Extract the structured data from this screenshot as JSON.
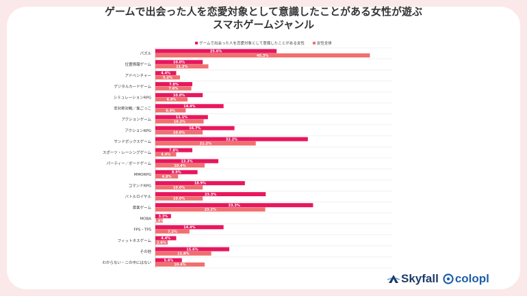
{
  "title_line1": "ゲームで出会った人を恋愛対象として意識したことがある女性が遊ぶ",
  "title_line2": "スマホゲームジャンル",
  "logos": {
    "skyfall": "Skyfall",
    "colopl": "colopl"
  },
  "colors": {
    "series1": "#e8175d",
    "series2": "#f07070",
    "background": "#fbe9ea",
    "grid": "#e6e6e6"
  },
  "chart_data": {
    "type": "bar",
    "orientation": "horizontal",
    "categories": [
      "パズル",
      "位置情報ゲーム",
      "アドベンチャー",
      "デジタルカードゲーム",
      "シミュレーションRPG",
      "非対称対戦／鬼ごっこ",
      "アクションゲーム",
      "アクションRPG",
      "サンドボックスゲーム",
      "スポーツ・レーシングゲーム",
      "パーティー／ボードゲーム",
      "MMORPG",
      "コマンドRPG",
      "バトルロイヤル",
      "音楽ゲーム",
      "MOBA",
      "FPS・TPS",
      "フィットネスゲーム",
      "その他",
      "わからない・この中にはない"
    ],
    "series": [
      {
        "name": "ゲームで出会った人を恋愛対象として意識したことがある女性",
        "values": [
          25.6,
          10.0,
          4.4,
          7.8,
          10.0,
          14.4,
          11.1,
          16.7,
          32.2,
          7.8,
          13.3,
          8.9,
          18.9,
          23.3,
          33.3,
          3.3,
          14.4,
          4.4,
          15.6,
          5.6
        ],
        "labels": [
          "25.6%",
          "10.0%",
          "4.4%",
          "7.8%",
          "10.0%",
          "14.4%",
          "11.1%",
          "16.7%",
          "32.2%",
          "7.8%",
          "13.3%",
          "8.9%",
          "18.9%",
          "23.3%",
          "33.3%",
          "3.3%",
          "14.4%",
          "4.4%",
          "15.6%",
          "5.6%"
        ]
      },
      {
        "name": "女性全体",
        "values": [
          45.3,
          11.2,
          5.2,
          7.6,
          6.8,
          6.4,
          10.2,
          10.0,
          21.2,
          4.4,
          10.4,
          4.8,
          10.0,
          10.0,
          23.2,
          1.6,
          7.2,
          2.6,
          11.8,
          10.4
        ],
        "labels": [
          "45.3%",
          "11.2%",
          "5.2%",
          "7.6%",
          "6.8%",
          "6.4%",
          "10.2%",
          "10.0%",
          "21.2%",
          "4.4%",
          "10.4%",
          "4.8%",
          "10.0%",
          "10.0%",
          "23.2%",
          "1.6%",
          "7.2%",
          "2.6%",
          "11.8%",
          "10.4%"
        ]
      }
    ],
    "xlim": [
      0,
      50
    ],
    "grid": "horizontal-separators",
    "legend_position": "top-center"
  }
}
